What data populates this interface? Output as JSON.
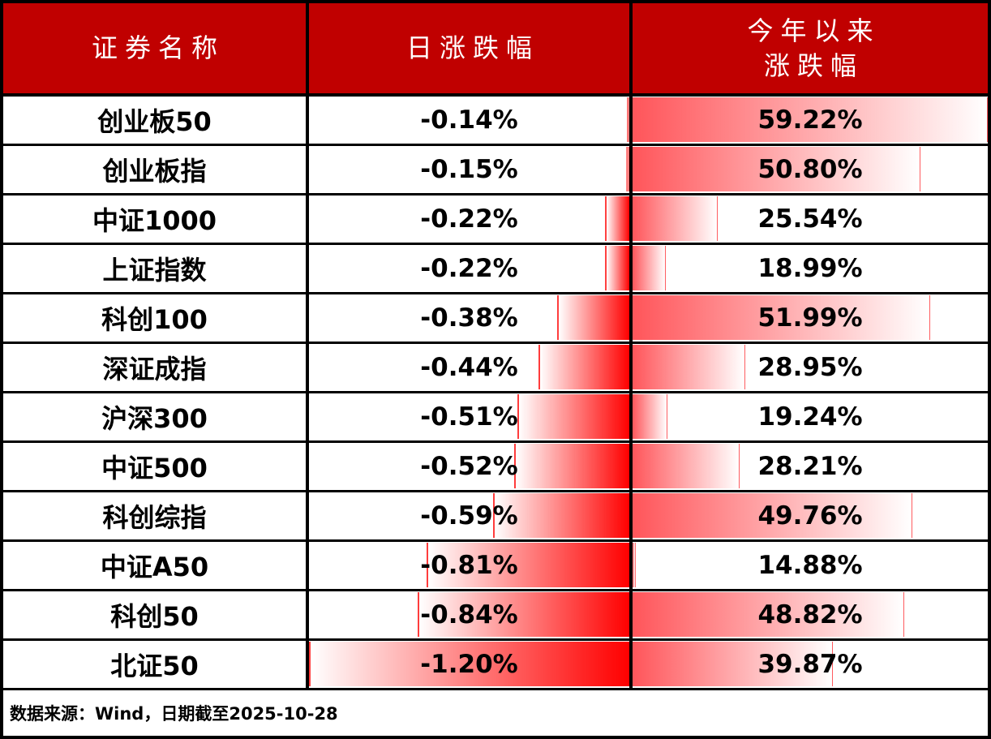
{
  "header": {
    "col1": "证券名称",
    "col2": "日涨跌幅",
    "col3_line1": "今年以来",
    "col3_line2": "涨跌幅"
  },
  "rows": [
    {
      "name": "创业板50",
      "daily": "-0.14%",
      "ytd": "59.22%"
    },
    {
      "name": "创业板指",
      "daily": "-0.15%",
      "ytd": "50.80%"
    },
    {
      "name": "中证1000",
      "daily": "-0.22%",
      "ytd": "25.54%"
    },
    {
      "name": "上证指数",
      "daily": "-0.22%",
      "ytd": "18.99%"
    },
    {
      "name": "科创100",
      "daily": "-0.38%",
      "ytd": "51.99%"
    },
    {
      "name": "深证成指",
      "daily": "-0.44%",
      "ytd": "28.95%"
    },
    {
      "name": "沪深300",
      "daily": "-0.51%",
      "ytd": "19.24%"
    },
    {
      "name": "中证500",
      "daily": "-0.52%",
      "ytd": "28.21%"
    },
    {
      "name": "科创综指",
      "daily": "-0.59%",
      "ytd": "49.76%"
    },
    {
      "name": "中证A50",
      "daily": "-0.81%",
      "ytd": "14.88%"
    },
    {
      "name": "科创50",
      "daily": "-0.84%",
      "ytd": "48.82%"
    },
    {
      "name": "北证50",
      "daily": "-1.20%",
      "ytd": "39.87%"
    }
  ],
  "footer": {
    "source_note": "数据来源：Wind，日期截至2025-10-28"
  },
  "colors": {
    "header_bg": "#C00000",
    "header_text": "#FFFFFF",
    "negative_bar": "#FF0000",
    "positive_bar": "#FF555A",
    "border": "#000000",
    "text": "#000000"
  },
  "chart_data": {
    "type": "table",
    "columns": [
      "证券名称",
      "日涨跌幅",
      "今年以来涨跌幅"
    ],
    "rows": [
      [
        "创业板50",
        -0.14,
        59.22
      ],
      [
        "创业板指",
        -0.15,
        50.8
      ],
      [
        "中证1000",
        -0.22,
        25.54
      ],
      [
        "上证指数",
        -0.22,
        18.99
      ],
      [
        "科创100",
        -0.38,
        51.99
      ],
      [
        "深证成指",
        -0.44,
        28.95
      ],
      [
        "沪深300",
        -0.51,
        19.24
      ],
      [
        "中证500",
        -0.52,
        28.21
      ],
      [
        "科创综指",
        -0.59,
        49.76
      ],
      [
        "中证A50",
        -0.81,
        14.88
      ],
      [
        "科创50",
        -0.84,
        48.82
      ],
      [
        "北证50",
        -1.2,
        39.87
      ]
    ],
    "daily_bar_scale": {
      "min": -1.2,
      "max": -0.14,
      "anchor": "right",
      "fill": "gradient-red-to-white"
    },
    "ytd_bar_scale": {
      "min": 14.88,
      "max": 59.22,
      "anchor": "left",
      "fill": "gradient-red-to-white"
    },
    "source_note": "数据来源：Wind，日期截至2025-10-28"
  }
}
